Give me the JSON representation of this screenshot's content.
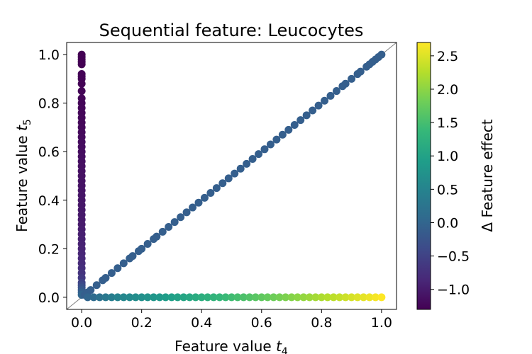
{
  "chart_data": {
    "type": "scatter",
    "title": "Sequential feature: Leucocytes",
    "xlabel": {
      "prefix": "Feature value ",
      "var": "t",
      "sub": "4"
    },
    "ylabel": {
      "prefix": "Feature value ",
      "var": "t",
      "sub": "5"
    },
    "xlim": [
      -0.05,
      1.05
    ],
    "ylim": [
      -0.05,
      1.05
    ],
    "xticks": [
      0.0,
      0.2,
      0.4,
      0.6,
      0.8,
      1.0
    ],
    "yticks": [
      0.0,
      0.2,
      0.4,
      0.6,
      0.8,
      1.0
    ],
    "xtick_labels": [
      "0.0",
      "0.2",
      "0.4",
      "0.6",
      "0.8",
      "1.0"
    ],
    "ytick_labels": [
      "0.0",
      "0.2",
      "0.4",
      "0.6",
      "0.8",
      "1.0"
    ],
    "grid": false,
    "reference_line": "y = x",
    "colorbar": {
      "label": "Δ Feature effect",
      "colormap": "viridis",
      "range": [
        -1.3,
        2.7
      ],
      "ticks": [
        -1.0,
        -0.5,
        0.0,
        0.5,
        1.0,
        1.5,
        2.0,
        2.5
      ],
      "tick_labels": [
        "−1.0",
        "−0.5",
        "0.0",
        "0.5",
        "1.0",
        "1.5",
        "2.0",
        "2.5"
      ]
    },
    "colors": {
      "viridis": [
        "#440154",
        "#482878",
        "#3e4989",
        "#31688e",
        "#26828e",
        "#1f9e89",
        "#35b779",
        "#6ece58",
        "#b5de2b",
        "#fde725"
      ],
      "reference_line": "#808080"
    },
    "series": [
      {
        "group": "t4_zero",
        "points": [
          [
            0,
            1.0,
            -1.3
          ],
          [
            0,
            0.99,
            -1.3
          ],
          [
            0,
            0.98,
            -1.3
          ],
          [
            0,
            0.97,
            -1.3
          ],
          [
            0,
            0.96,
            -1.3
          ],
          [
            0,
            0.92,
            -1.28
          ],
          [
            0,
            0.91,
            -1.28
          ],
          [
            0,
            0.9,
            -1.28
          ],
          [
            0,
            0.88,
            -1.27
          ],
          [
            0,
            0.85,
            -1.26
          ],
          [
            0,
            0.82,
            -1.25
          ],
          [
            0,
            0.8,
            -1.25
          ],
          [
            0,
            0.78,
            -1.24
          ],
          [
            0,
            0.76,
            -1.23
          ],
          [
            0,
            0.74,
            -1.22
          ],
          [
            0,
            0.72,
            -1.22
          ],
          [
            0,
            0.7,
            -1.21
          ],
          [
            0,
            0.68,
            -1.2
          ],
          [
            0,
            0.66,
            -1.19
          ],
          [
            0,
            0.64,
            -1.18
          ],
          [
            0,
            0.62,
            -1.17
          ],
          [
            0,
            0.6,
            -1.16
          ],
          [
            0,
            0.58,
            -1.15
          ],
          [
            0,
            0.56,
            -1.14
          ],
          [
            0,
            0.54,
            -1.13
          ],
          [
            0,
            0.52,
            -1.12
          ],
          [
            0,
            0.5,
            -1.11
          ],
          [
            0,
            0.48,
            -1.1
          ],
          [
            0,
            0.46,
            -1.09
          ],
          [
            0,
            0.44,
            -1.08
          ],
          [
            0,
            0.42,
            -1.07
          ],
          [
            0,
            0.4,
            -1.06
          ],
          [
            0,
            0.38,
            -1.05
          ],
          [
            0,
            0.36,
            -1.04
          ],
          [
            0,
            0.34,
            -1.03
          ],
          [
            0,
            0.32,
            -1.02
          ],
          [
            0,
            0.3,
            -1.0
          ],
          [
            0,
            0.28,
            -0.98
          ],
          [
            0,
            0.26,
            -0.96
          ],
          [
            0,
            0.24,
            -0.94
          ],
          [
            0,
            0.22,
            -0.92
          ],
          [
            0,
            0.2,
            -0.9
          ],
          [
            0,
            0.18,
            -0.87
          ],
          [
            0,
            0.16,
            -0.84
          ],
          [
            0,
            0.14,
            -0.8
          ],
          [
            0,
            0.12,
            -0.76
          ],
          [
            0,
            0.1,
            -0.7
          ],
          [
            0,
            0.08,
            -0.62
          ],
          [
            0,
            0.06,
            -0.5
          ],
          [
            0,
            0.05,
            -0.4
          ],
          [
            0,
            0.04,
            -0.3
          ],
          [
            0,
            0.03,
            -0.2
          ],
          [
            0,
            0.02,
            -0.1
          ],
          [
            0,
            0.01,
            0.0
          ]
        ]
      },
      {
        "group": "diagonal",
        "points": [
          [
            0.01,
            0.01,
            -0.1
          ],
          [
            0.02,
            0.02,
            -0.1
          ],
          [
            0.03,
            0.03,
            -0.1
          ],
          [
            0.05,
            0.05,
            -0.1
          ],
          [
            0.07,
            0.07,
            -0.1
          ],
          [
            0.08,
            0.08,
            -0.1
          ],
          [
            0.1,
            0.1,
            -0.1
          ],
          [
            0.12,
            0.12,
            -0.1
          ],
          [
            0.14,
            0.14,
            -0.1
          ],
          [
            0.16,
            0.16,
            -0.1
          ],
          [
            0.17,
            0.17,
            -0.1
          ],
          [
            0.19,
            0.19,
            -0.1
          ],
          [
            0.2,
            0.2,
            -0.1
          ],
          [
            0.22,
            0.22,
            -0.1
          ],
          [
            0.24,
            0.24,
            -0.1
          ],
          [
            0.25,
            0.25,
            -0.1
          ],
          [
            0.27,
            0.27,
            -0.1
          ],
          [
            0.29,
            0.29,
            -0.1
          ],
          [
            0.31,
            0.31,
            -0.1
          ],
          [
            0.33,
            0.33,
            -0.1
          ],
          [
            0.35,
            0.35,
            -0.1
          ],
          [
            0.37,
            0.37,
            -0.1
          ],
          [
            0.39,
            0.39,
            -0.1
          ],
          [
            0.41,
            0.41,
            -0.1
          ],
          [
            0.43,
            0.43,
            -0.1
          ],
          [
            0.45,
            0.45,
            -0.1
          ],
          [
            0.47,
            0.47,
            -0.1
          ],
          [
            0.49,
            0.49,
            -0.1
          ],
          [
            0.51,
            0.51,
            -0.1
          ],
          [
            0.53,
            0.53,
            -0.1
          ],
          [
            0.55,
            0.55,
            -0.1
          ],
          [
            0.57,
            0.57,
            -0.1
          ],
          [
            0.59,
            0.59,
            -0.1
          ],
          [
            0.61,
            0.61,
            -0.1
          ],
          [
            0.63,
            0.63,
            -0.1
          ],
          [
            0.65,
            0.65,
            -0.1
          ],
          [
            0.67,
            0.67,
            -0.1
          ],
          [
            0.69,
            0.69,
            -0.1
          ],
          [
            0.71,
            0.71,
            -0.1
          ],
          [
            0.73,
            0.73,
            -0.1
          ],
          [
            0.75,
            0.75,
            -0.1
          ],
          [
            0.77,
            0.77,
            -0.1
          ],
          [
            0.79,
            0.79,
            -0.1
          ],
          [
            0.81,
            0.81,
            -0.1
          ],
          [
            0.83,
            0.83,
            -0.1
          ],
          [
            0.85,
            0.85,
            -0.1
          ],
          [
            0.87,
            0.87,
            -0.1
          ],
          [
            0.88,
            0.88,
            -0.1
          ],
          [
            0.9,
            0.9,
            -0.1
          ],
          [
            0.92,
            0.92,
            -0.1
          ],
          [
            0.93,
            0.93,
            -0.1
          ],
          [
            0.95,
            0.95,
            -0.1
          ],
          [
            0.96,
            0.96,
            -0.1
          ],
          [
            0.97,
            0.97,
            -0.1
          ],
          [
            0.98,
            0.98,
            -0.1
          ],
          [
            0.99,
            0.99,
            -0.1
          ],
          [
            1.0,
            1.0,
            -0.1
          ]
        ]
      },
      {
        "group": "t5_zero",
        "points": [
          [
            0.02,
            0,
            0.0
          ],
          [
            0.04,
            0,
            0.1
          ],
          [
            0.06,
            0,
            0.2
          ],
          [
            0.08,
            0,
            0.3
          ],
          [
            0.1,
            0,
            0.4
          ],
          [
            0.12,
            0,
            0.5
          ],
          [
            0.14,
            0,
            0.55
          ],
          [
            0.16,
            0,
            0.6
          ],
          [
            0.18,
            0,
            0.65
          ],
          [
            0.2,
            0,
            0.7
          ],
          [
            0.22,
            0,
            0.75
          ],
          [
            0.24,
            0,
            0.8
          ],
          [
            0.26,
            0,
            0.85
          ],
          [
            0.28,
            0,
            0.9
          ],
          [
            0.3,
            0,
            0.95
          ],
          [
            0.32,
            0,
            1.0
          ],
          [
            0.34,
            0,
            1.05
          ],
          [
            0.36,
            0,
            1.1
          ],
          [
            0.38,
            0,
            1.15
          ],
          [
            0.4,
            0,
            1.2
          ],
          [
            0.42,
            0,
            1.25
          ],
          [
            0.44,
            0,
            1.3
          ],
          [
            0.46,
            0,
            1.35
          ],
          [
            0.48,
            0,
            1.4
          ],
          [
            0.5,
            0,
            1.45
          ],
          [
            0.52,
            0,
            1.5
          ],
          [
            0.54,
            0,
            1.55
          ],
          [
            0.56,
            0,
            1.6
          ],
          [
            0.58,
            0,
            1.65
          ],
          [
            0.6,
            0,
            1.7
          ],
          [
            0.62,
            0,
            1.75
          ],
          [
            0.64,
            0,
            1.8
          ],
          [
            0.66,
            0,
            1.85
          ],
          [
            0.68,
            0,
            1.9
          ],
          [
            0.7,
            0,
            1.95
          ],
          [
            0.72,
            0,
            2.0
          ],
          [
            0.74,
            0,
            2.05
          ],
          [
            0.76,
            0,
            2.1
          ],
          [
            0.78,
            0,
            2.15
          ],
          [
            0.8,
            0,
            2.2
          ],
          [
            0.82,
            0,
            2.25
          ],
          [
            0.84,
            0,
            2.3
          ],
          [
            0.86,
            0,
            2.35
          ],
          [
            0.88,
            0,
            2.4
          ],
          [
            0.9,
            0,
            2.45
          ],
          [
            0.92,
            0,
            2.5
          ],
          [
            0.94,
            0,
            2.55
          ],
          [
            0.96,
            0,
            2.6
          ],
          [
            0.98,
            0,
            2.65
          ],
          [
            1.0,
            0,
            2.7
          ]
        ]
      }
    ]
  }
}
